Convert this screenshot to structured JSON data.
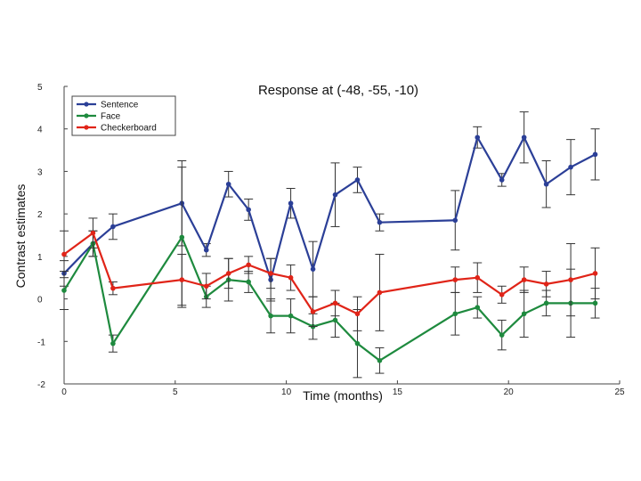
{
  "chart_data": {
    "type": "line",
    "title": "Response at (-48, -55, -10)",
    "xlabel": "Time (months)",
    "ylabel": "Contrast estimates",
    "xlim": [
      0,
      25
    ],
    "ylim": [
      -2,
      5
    ],
    "xticks": [
      0,
      5,
      10,
      15,
      20,
      25
    ],
    "yticks": [
      -2,
      -1,
      0,
      1,
      2,
      3,
      4,
      5
    ],
    "grid": false,
    "legend_position": "top-left",
    "series": [
      {
        "name": "Sentence",
        "color": "#2b3f97",
        "x": [
          0,
          1.3,
          2.2,
          5.3,
          6.4,
          7.4,
          8.3,
          9.3,
          10.2,
          11.2,
          12.2,
          13.2,
          14.2,
          17.6,
          18.6,
          19.7,
          20.7,
          21.7,
          22.8,
          23.9
        ],
        "y": [
          0.6,
          1.3,
          1.7,
          2.25,
          1.15,
          2.7,
          2.1,
          0.45,
          2.25,
          0.7,
          2.45,
          2.8,
          1.8,
          1.85,
          3.8,
          2.8,
          3.8,
          2.7,
          3.1,
          3.4
        ],
        "err": [
          0.3,
          0.3,
          0.3,
          1.0,
          0.15,
          0.3,
          0.25,
          0.5,
          0.35,
          0.65,
          0.75,
          0.3,
          0.2,
          0.7,
          0.25,
          0.15,
          0.6,
          0.55,
          0.65,
          0.6
        ]
      },
      {
        "name": "Face",
        "color": "#1e8a3e",
        "x": [
          0,
          1.3,
          2.2,
          5.3,
          6.4,
          7.4,
          8.3,
          9.3,
          10.2,
          11.2,
          12.2,
          13.2,
          14.2,
          17.6,
          18.6,
          19.7,
          20.7,
          21.7,
          22.8,
          23.9
        ],
        "y": [
          0.2,
          1.3,
          -1.05,
          1.45,
          0.05,
          0.45,
          0.4,
          -0.4,
          -0.4,
          -0.65,
          -0.5,
          -1.05,
          -1.45,
          -0.35,
          -0.2,
          -0.85,
          -0.35,
          -0.1,
          -0.1,
          -0.1
        ],
        "err": [
          0.45,
          0.3,
          0.2,
          1.65,
          0.25,
          0.5,
          0.25,
          0.4,
          0.4,
          0.3,
          0.4,
          0.8,
          0.3,
          0.5,
          0.25,
          0.35,
          0.55,
          0.3,
          0.8,
          0.35
        ]
      },
      {
        "name": "Checkerboard",
        "color": "#e02418",
        "x": [
          0,
          1.3,
          2.2,
          5.3,
          6.4,
          7.4,
          8.3,
          9.3,
          10.2,
          11.2,
          12.2,
          13.2,
          14.2,
          17.6,
          18.6,
          19.7,
          20.7,
          21.7,
          22.8,
          23.9
        ],
        "y": [
          1.05,
          1.55,
          0.25,
          0.45,
          0.3,
          0.6,
          0.8,
          0.6,
          0.5,
          -0.3,
          -0.1,
          -0.35,
          0.15,
          0.45,
          0.5,
          0.1,
          0.45,
          0.35,
          0.45,
          0.6
        ],
        "err": [
          0.55,
          0.35,
          0.15,
          0.6,
          0.3,
          0.35,
          0.2,
          0.35,
          0.3,
          0.35,
          0.3,
          0.4,
          0.9,
          0.3,
          0.35,
          0.2,
          0.3,
          0.3,
          0.85,
          0.6
        ]
      }
    ]
  }
}
